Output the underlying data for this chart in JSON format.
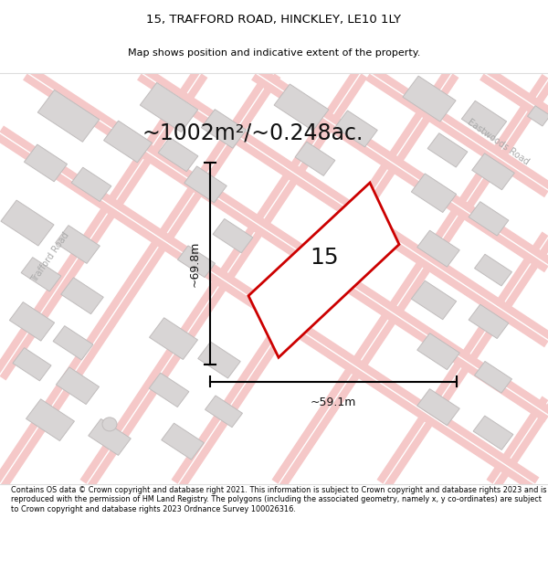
{
  "title_line1": "15, TRAFFORD ROAD, HINCKLEY, LE10 1LY",
  "title_line2": "Map shows position and indicative extent of the property.",
  "area_text": "~1002m²/~0.248ac.",
  "property_number": "15",
  "dim_vertical": "~69.8m",
  "dim_horizontal": "~59.1m",
  "road_label_left": "Trafford Road",
  "road_label_right": "Eastwoods Road",
  "footer_text": "Contains OS data © Crown copyright and database right 2021. This information is subject to Crown copyright and database rights 2023 and is reproduced with the permission of HM Land Registry. The polygons (including the associated geometry, namely x, y co-ordinates) are subject to Crown copyright and database rights 2023 Ordnance Survey 100026316.",
  "map_bg": "#faf7f7",
  "road_color": "#f5c8c8",
  "road_edge_color": "#e8b0b0",
  "building_color": "#d8d5d5",
  "building_edge_color": "#c0bcbc",
  "property_edge_color": "#cc0000",
  "property_fill": "#ffffff",
  "header_bg": "#ffffff",
  "footer_bg": "#ffffff",
  "dim_line_color": "#000000",
  "text_color": "#111111",
  "road_label_color": "#aaaaaa"
}
